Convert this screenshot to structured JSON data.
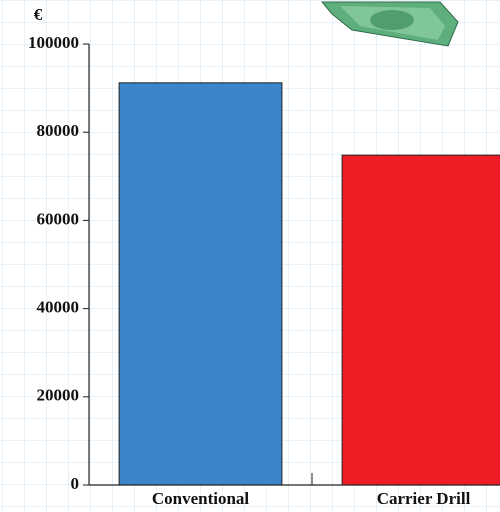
{
  "chart_data": {
    "type": "bar",
    "y_label": "€",
    "categories": [
      "Conventional",
      "Carrier Drill"
    ],
    "series": [
      {
        "values": [
          91200,
          74800
        ],
        "colors": [
          "#3a86c8",
          "#ee1c25"
        ]
      }
    ],
    "ylim": [
      0,
      100000
    ],
    "yticks": [
      0,
      20000,
      40000,
      60000,
      80000,
      100000
    ],
    "grid": true
  }
}
